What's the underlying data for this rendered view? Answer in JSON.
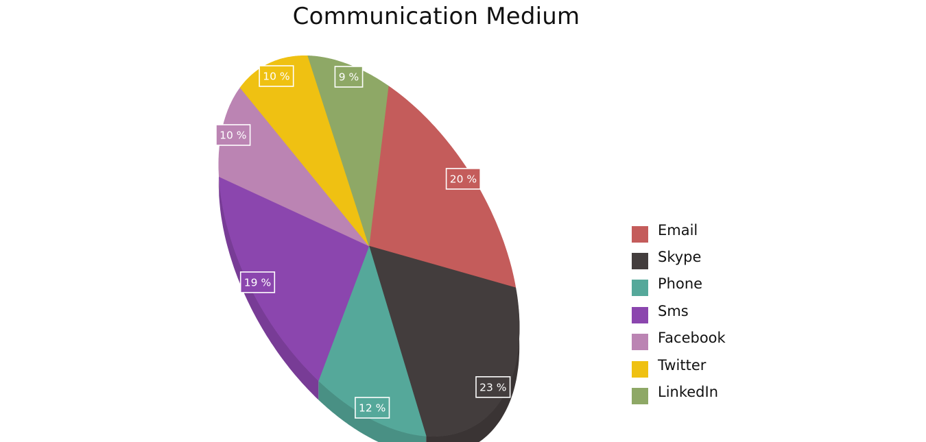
{
  "chart_data": {
    "type": "pie",
    "title": "Communication Medium",
    "categories": [
      "Email",
      "Skype",
      "Phone",
      "Sms",
      "Facebook",
      "Twitter",
      "LinkedIn"
    ],
    "values": [
      20,
      23,
      12,
      19,
      10,
      10,
      9
    ],
    "data_labels": [
      "20 %",
      "23 %",
      "12 %",
      "19 %",
      "10 %",
      "10 %",
      "9 %"
    ],
    "colors": [
      "#c45c5b",
      "#433d3d",
      "#55a89a",
      "#8b46ae",
      "#bb84b3",
      "#efc112",
      "#8ea866"
    ],
    "legend_position": "right",
    "style": "3d-tilted"
  }
}
